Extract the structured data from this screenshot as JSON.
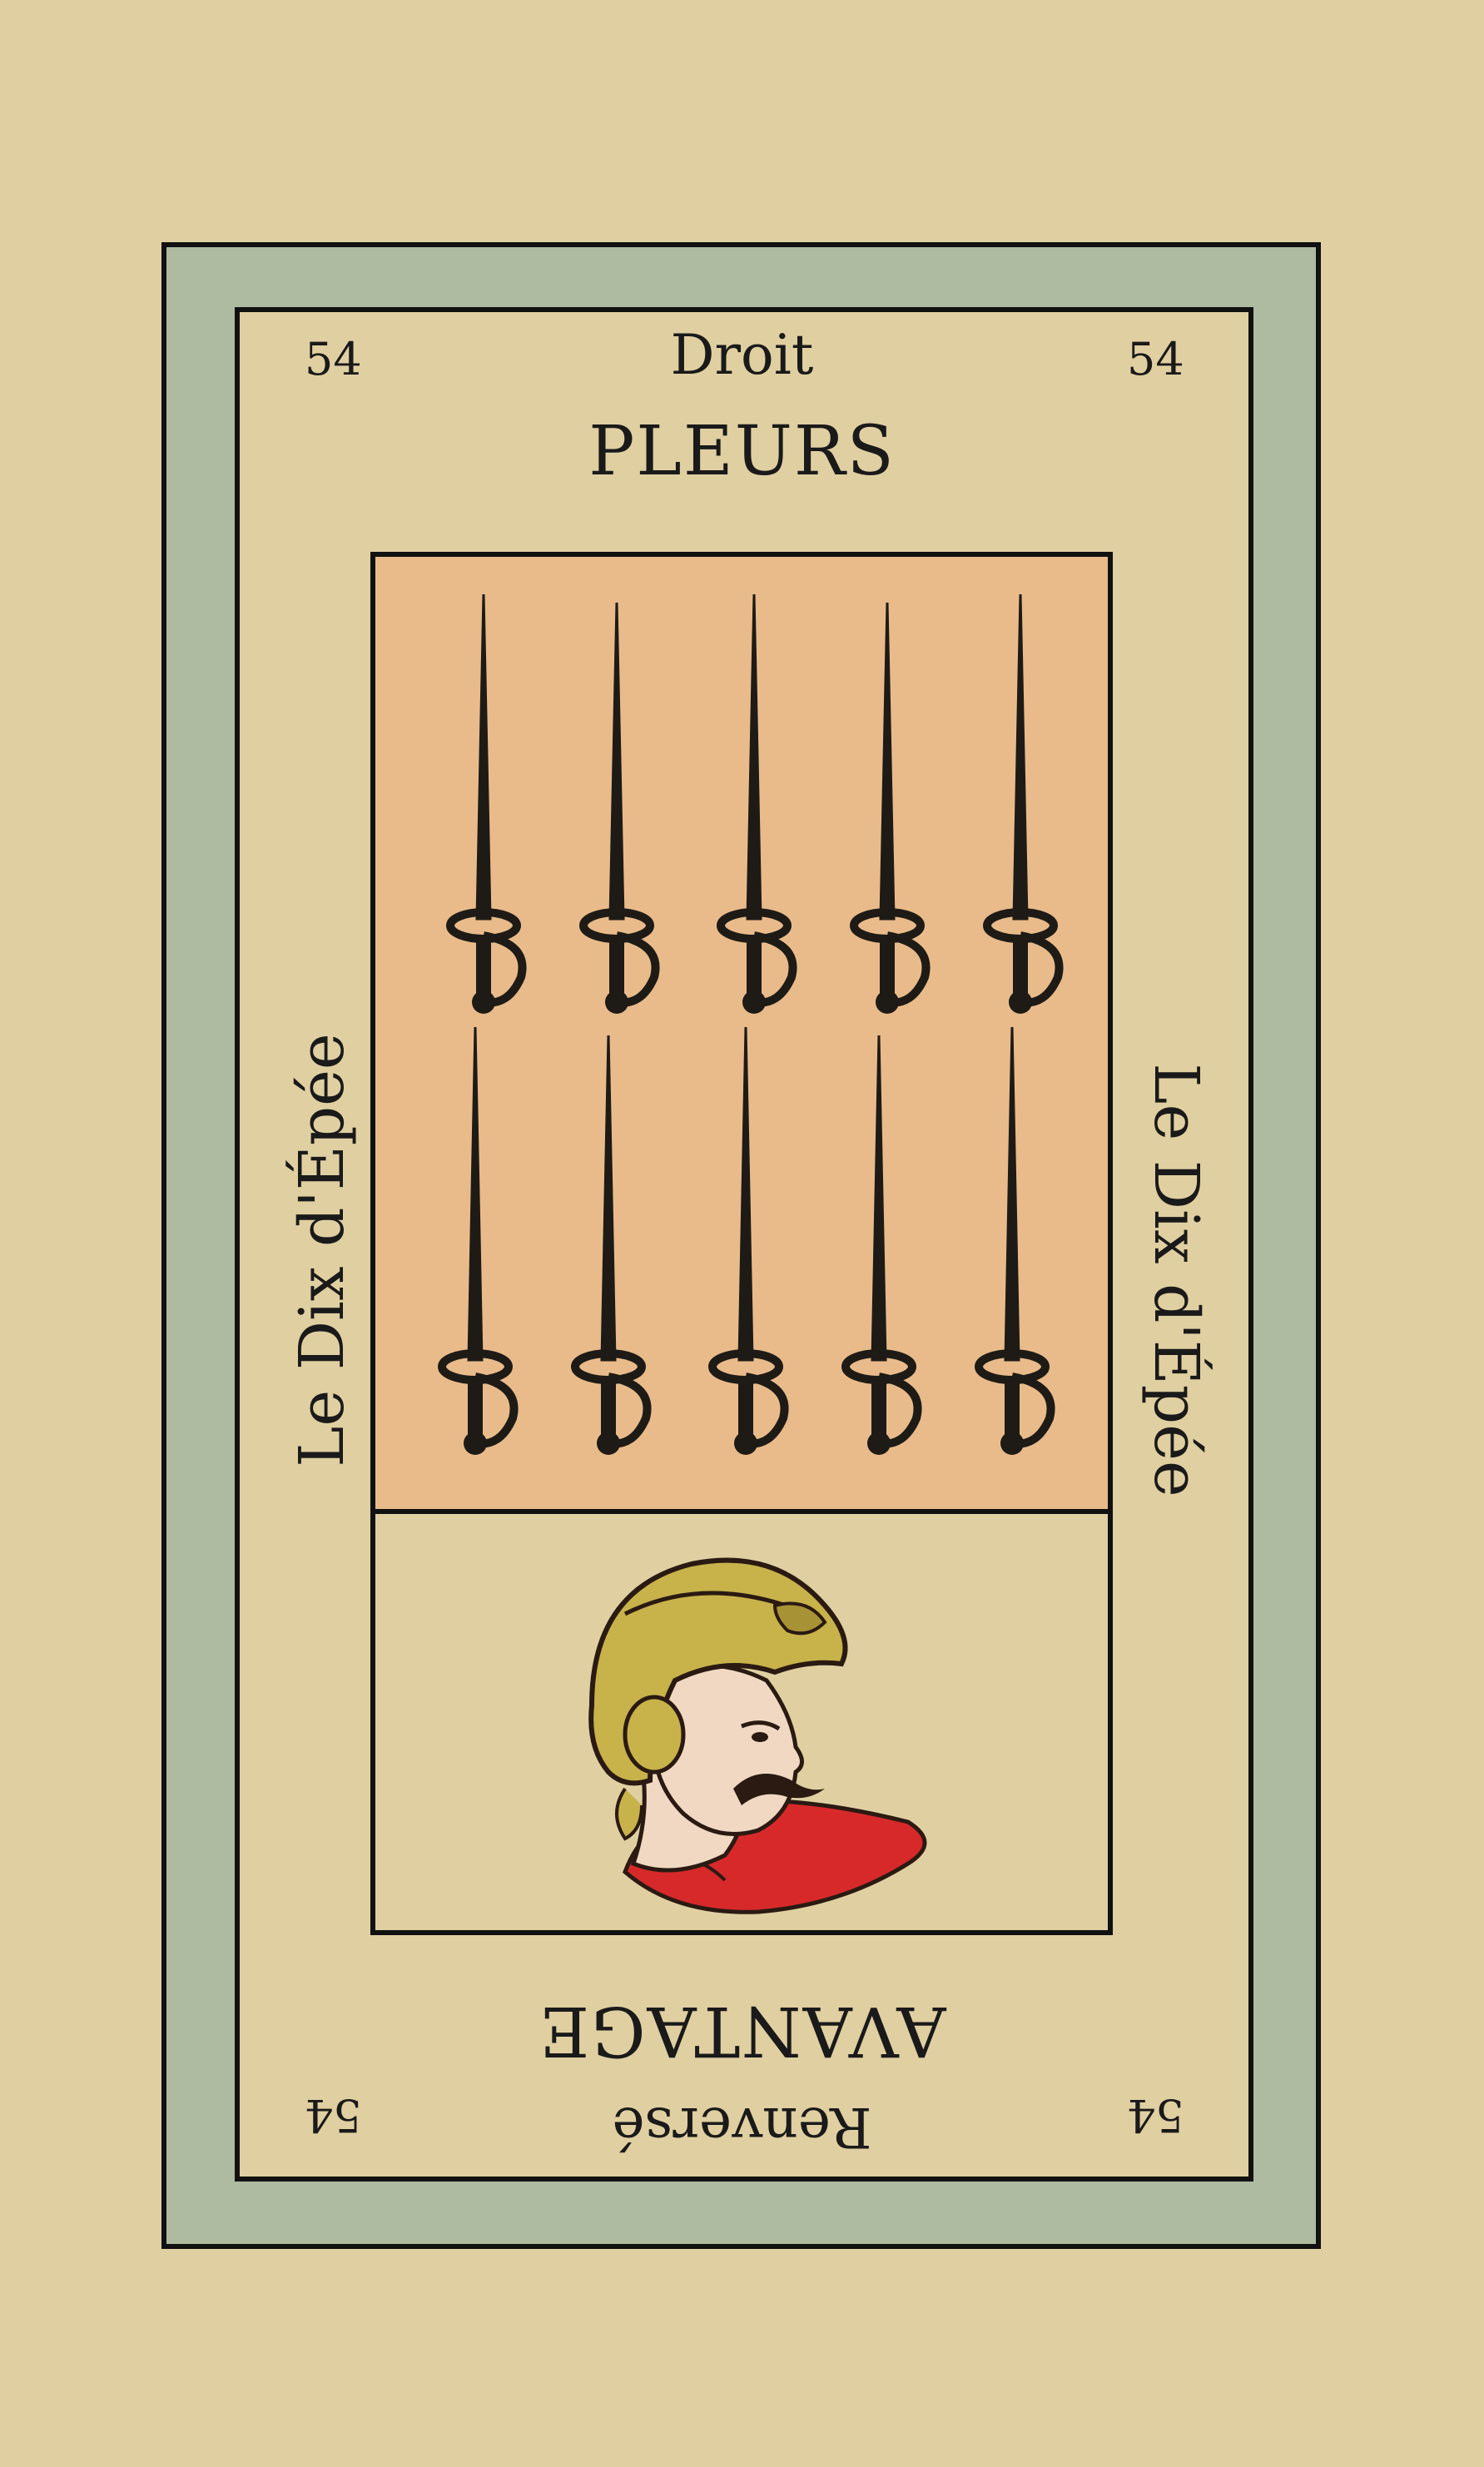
{
  "card": {
    "number": "54",
    "upright_label": "Droit",
    "upright_meaning": "PLEURS",
    "reversed_label": "Renversé",
    "reversed_meaning": "AVANTAGE",
    "name": "Le Dix d'Épée"
  },
  "colors": {
    "background": "#e0cfa1",
    "frame": "#aebba1",
    "illustration_bg": "#e9bb8a",
    "cloak": "#d8292a",
    "helmet": "#c8b24a"
  },
  "illustration": {
    "sword_count": 10,
    "sword_rows": 2,
    "icon": "sword-icon",
    "portrait_icon": "helmeted-man-portrait-icon"
  }
}
